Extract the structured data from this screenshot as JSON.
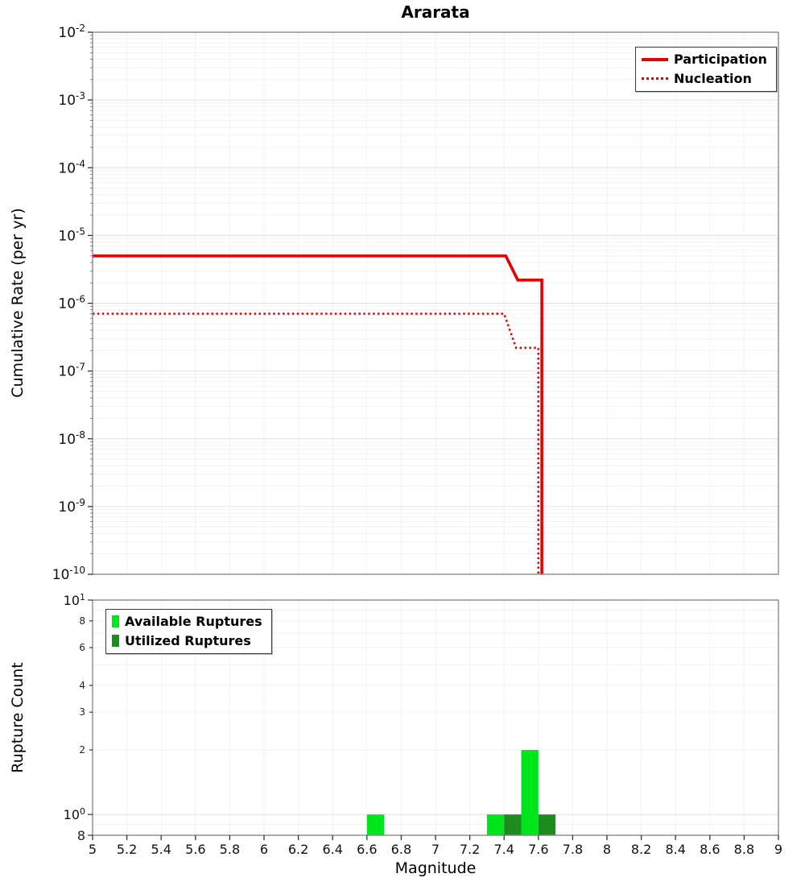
{
  "title": "Ararata",
  "axes": {
    "top": {
      "ylabel": "Cumulative Rate (per yr)"
    },
    "bottom": {
      "ylabel": "Rupture Count",
      "xlabel": "Magnitude"
    }
  },
  "legend_top": {
    "items": [
      {
        "label": "Participation",
        "style": "solid",
        "color": "#e60000"
      },
      {
        "label": "Nucleation",
        "style": "dotted",
        "color": "#e60000"
      }
    ]
  },
  "legend_bottom": {
    "items": [
      {
        "label": "Available Ruptures",
        "color": "#00e61c"
      },
      {
        "label": "Utilized Ruptures",
        "color": "#1e8c1e"
      }
    ]
  },
  "chart_data": [
    {
      "type": "line",
      "title": "Ararata",
      "ylabel": "Cumulative Rate (per yr)",
      "xlim": [
        5,
        9
      ],
      "yscale": "log",
      "ylim": [
        1e-10,
        0.01
      ],
      "y_tick_exponents": [
        -2,
        -3,
        -4,
        -5,
        -6,
        -7,
        -8,
        -9,
        -10
      ],
      "grid": true,
      "legend_position": "upper right",
      "series": [
        {
          "name": "Participation",
          "color": "#e60000",
          "style": "solid",
          "points": [
            [
              5.0,
              5e-06
            ],
            [
              7.41,
              5e-06
            ],
            [
              7.48,
              2.2e-06
            ],
            [
              7.62,
              2.2e-06
            ],
            [
              7.62,
              1e-10
            ]
          ]
        },
        {
          "name": "Nucleation",
          "color": "#e60000",
          "style": "dotted",
          "points": [
            [
              5.0,
              7e-07
            ],
            [
              7.4,
              7e-07
            ],
            [
              7.47,
              2.2e-07
            ],
            [
              7.6,
              2.2e-07
            ],
            [
              7.6,
              1e-10
            ]
          ]
        }
      ]
    },
    {
      "type": "bar",
      "xlabel": "Magnitude",
      "ylabel": "Rupture Count",
      "xlim": [
        5,
        9
      ],
      "yscale": "log",
      "ylim": [
        0.8,
        10
      ],
      "bar_width": 0.1,
      "legend_position": "upper left",
      "x_ticks": [
        {
          "value": 5,
          "label": "5"
        },
        {
          "value": 5.2,
          "label": "5.2"
        },
        {
          "value": 5.4,
          "label": "5.4"
        },
        {
          "value": 5.6,
          "label": "5.6"
        },
        {
          "value": 5.8,
          "label": "5.8"
        },
        {
          "value": 6,
          "label": "6"
        },
        {
          "value": 6.2,
          "label": "6.2"
        },
        {
          "value": 6.4,
          "label": "6.4"
        },
        {
          "value": 6.6,
          "label": "6.6"
        },
        {
          "value": 6.8,
          "label": "6.8"
        },
        {
          "value": 7,
          "label": "7"
        },
        {
          "value": 7.2,
          "label": "7.2"
        },
        {
          "value": 7.4,
          "label": "7.4"
        },
        {
          "value": 7.6,
          "label": "7.6"
        },
        {
          "value": 7.8,
          "label": "7.8"
        },
        {
          "value": 8,
          "label": "8"
        },
        {
          "value": 8.2,
          "label": "8.2"
        },
        {
          "value": 8.4,
          "label": "8.4"
        },
        {
          "value": 8.6,
          "label": "8.6"
        },
        {
          "value": 8.8,
          "label": "8.8"
        },
        {
          "value": 9,
          "label": "9"
        }
      ],
      "y_ticks": [
        {
          "value": 10,
          "label": "10",
          "exponent": "1",
          "major": true
        },
        {
          "value": 8,
          "label": "8"
        },
        {
          "value": 6,
          "label": "6"
        },
        {
          "value": 4,
          "label": "4"
        },
        {
          "value": 3,
          "label": "3"
        },
        {
          "value": 2,
          "label": "2"
        },
        {
          "value": 1,
          "label": "10",
          "exponent": "0",
          "major": true
        },
        {
          "value": 0.8,
          "label": "8",
          "major": true
        }
      ],
      "series": [
        {
          "name": "Available Ruptures",
          "color": "#00e61c",
          "bars": [
            {
              "x": 6.65,
              "count": 1
            },
            {
              "x": 7.35,
              "count": 1
            },
            {
              "x": 7.55,
              "count": 2
            }
          ]
        },
        {
          "name": "Utilized Ruptures",
          "color": "#1e8c1e",
          "bars": [
            {
              "x": 7.45,
              "count": 1
            },
            {
              "x": 7.65,
              "count": 1
            }
          ]
        }
      ]
    }
  ]
}
